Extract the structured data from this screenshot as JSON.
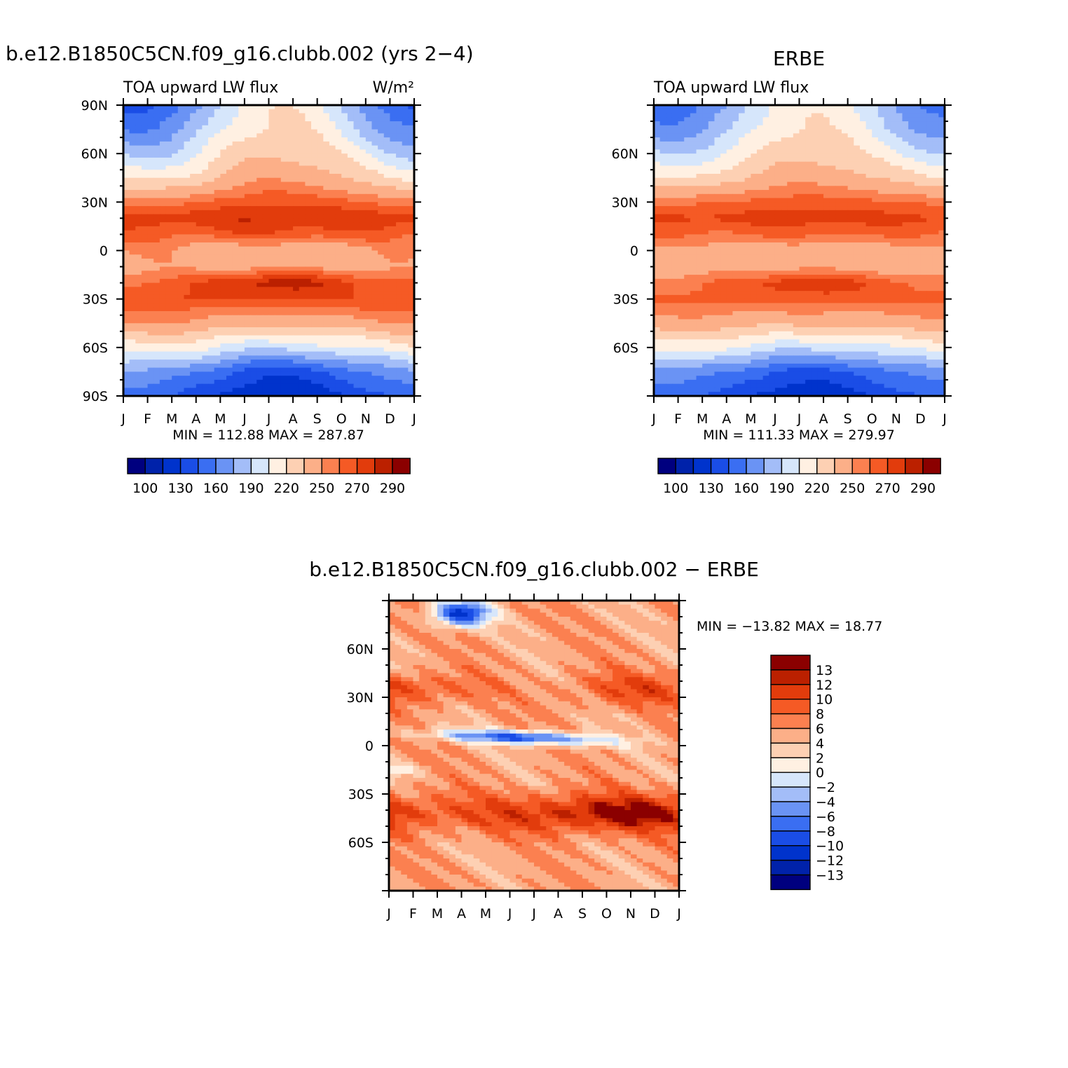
{
  "chart_data": [
    {
      "type": "heatmap",
      "id": "model",
      "title": "b.e12.B1850C5CN.f09_g16.clubb.002 (yrs 2−4)",
      "subtitle": "TOA upward LW flux",
      "units": "W/m²",
      "x": [
        "J",
        "F",
        "M",
        "A",
        "M",
        "J",
        "J",
        "A",
        "S",
        "O",
        "N",
        "D",
        "J"
      ],
      "xlabel": "",
      "ylabel": "",
      "y_ticks": [
        "90N",
        "60N",
        "30N",
        "0",
        "30S",
        "60S",
        "90S"
      ],
      "ylim": [
        -90,
        90
      ],
      "stats": "MIN = 112.88 MAX = 287.87",
      "min": 112.88,
      "max": 287.87,
      "colorbar": {
        "orientation": "horizontal",
        "labels": [
          "100",
          "130",
          "160",
          "190",
          "220",
          "250",
          "270",
          "290"
        ],
        "colors": [
          "#00007f",
          "#0022aa",
          "#0033cc",
          "#1a4de6",
          "#3a6ef2",
          "#6a93f4",
          "#a3bdf8",
          "#d6e6fb",
          "#fff0e2",
          "#fdd0b3",
          "#fcaf88",
          "#fb8050",
          "#f55a25",
          "#e23c0c",
          "#bb2000",
          "#8b0000"
        ]
      },
      "zonal_profile": {
        "lat": [
          90,
          75,
          60,
          45,
          30,
          20,
          10,
          0,
          -10,
          -20,
          -30,
          -45,
          -60,
          -75,
          -90
        ],
        "jan": [
          140,
          160,
          185,
          215,
          255,
          276,
          262,
          250,
          245,
          260,
          270,
          250,
          215,
          175,
          150
        ],
        "jul": [
          220,
          225,
          235,
          248,
          268,
          280,
          268,
          235,
          248,
          285,
          270,
          240,
          195,
          135,
          115
        ]
      }
    },
    {
      "type": "heatmap",
      "id": "erbe",
      "title": "ERBE",
      "subtitle": "TOA upward LW flux",
      "x": [
        "J",
        "F",
        "M",
        "A",
        "M",
        "J",
        "J",
        "A",
        "S",
        "O",
        "N",
        "D",
        "J"
      ],
      "y_ticks": [
        "60N",
        "30N",
        "0",
        "30S",
        "60S"
      ],
      "ylim": [
        -90,
        90
      ],
      "stats": "MIN = 111.33 MAX = 279.97",
      "min": 111.33,
      "max": 279.97,
      "colorbar": {
        "orientation": "horizontal",
        "labels": [
          "100",
          "130",
          "160",
          "190",
          "220",
          "250",
          "270",
          "290"
        ]
      },
      "zonal_profile": {
        "lat": [
          90,
          75,
          60,
          45,
          30,
          20,
          10,
          0,
          -10,
          -20,
          -30,
          -45,
          -60,
          -75,
          -90
        ],
        "jan": [
          150,
          165,
          190,
          220,
          258,
          272,
          260,
          245,
          240,
          255,
          262,
          245,
          212,
          170,
          150
        ],
        "jul": [
          218,
          222,
          232,
          245,
          265,
          275,
          262,
          238,
          245,
          278,
          265,
          238,
          195,
          140,
          118
        ]
      }
    },
    {
      "type": "heatmap",
      "id": "difference",
      "title": "b.e12.B1850C5CN.f09_g16.clubb.002 − ERBE",
      "x": [
        "J",
        "F",
        "M",
        "A",
        "M",
        "J",
        "J",
        "A",
        "S",
        "O",
        "N",
        "D",
        "J"
      ],
      "y_ticks": [
        "60N",
        "30N",
        "0",
        "30S",
        "60S"
      ],
      "ylim": [
        -90,
        90
      ],
      "stats": "MIN = −13.82 MAX =   18.77",
      "min": -13.82,
      "max": 18.77,
      "colorbar": {
        "orientation": "vertical",
        "labels": [
          "13",
          "12",
          "10",
          "8",
          "6",
          "4",
          "2",
          "0",
          "−2",
          "−4",
          "−6",
          "−8",
          "−10",
          "−12",
          "−13"
        ]
      }
    }
  ]
}
